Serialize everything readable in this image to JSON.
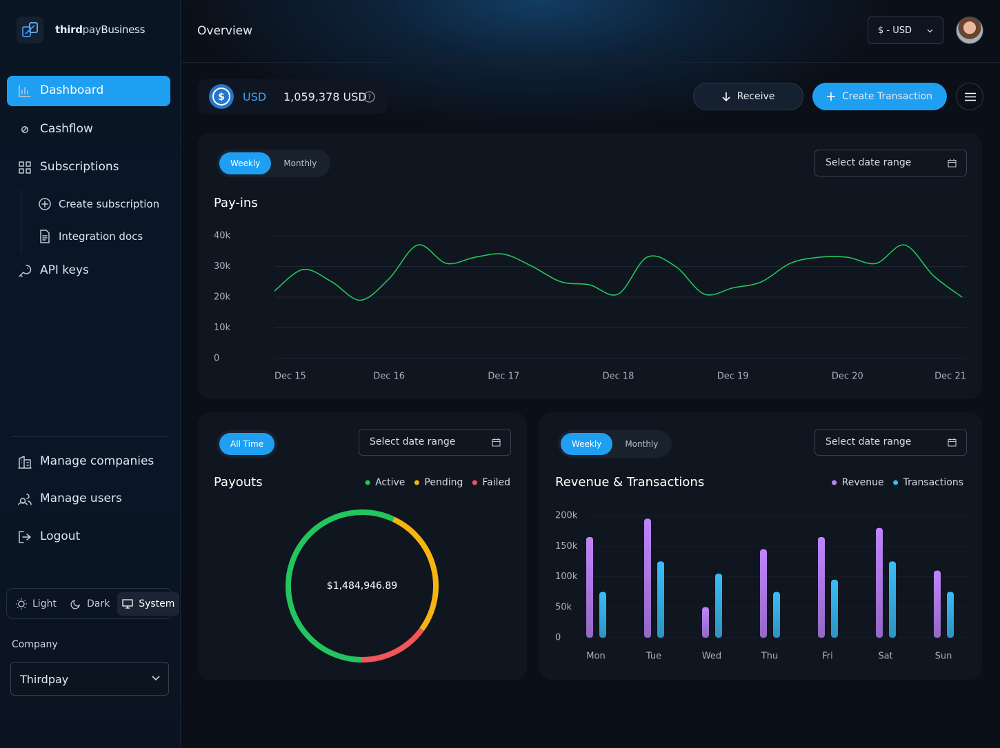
{
  "brand": [
    "third",
    "pay",
    "Business"
  ],
  "nav": [
    {
      "label": "Dashboard",
      "active": true
    },
    {
      "label": "Cashflow"
    },
    {
      "label": "Subscriptions"
    }
  ],
  "subnav": [
    "Create subscription",
    "Integration docs"
  ],
  "api_keys": "API keys",
  "bottom_nav": [
    "Manage companies",
    "Manage users",
    "Logout"
  ],
  "theme": {
    "options": [
      "Light",
      "Dark",
      "System"
    ],
    "selected": "System"
  },
  "company": {
    "label": "Company",
    "value": "Thirdpay"
  },
  "header": {
    "title": "Overview",
    "currency": "$ - USD"
  },
  "balance": {
    "currency": "USD",
    "amount": "1,059,378 USD"
  },
  "actions": {
    "receive": "Receive",
    "create": "Create Transaction"
  },
  "cards": [
    {
      "tabs": [
        "Weekly",
        "Monthly"
      ],
      "active_tab": "Weekly",
      "date_range": "Select date range"
    },
    {
      "tabs": [
        "All Time"
      ],
      "active_tab": "All Time",
      "date_range": "Select date range"
    },
    {
      "tabs": [
        "Weekly",
        "Monthly"
      ],
      "active_tab": "Weekly",
      "date_range": "Select date range"
    }
  ],
  "chart_data": [
    {
      "type": "line",
      "title": "Pay-ins",
      "categories": [
        "Dec 15",
        null,
        null,
        null,
        "Dec 16",
        null,
        null,
        null,
        "Dec 17",
        null,
        null,
        null,
        "Dec 18",
        null,
        null,
        null,
        "Dec 19",
        null,
        null,
        null,
        "Dec 20",
        null,
        null,
        null,
        "Dec 21"
      ],
      "values": [
        22000,
        29000,
        25000,
        19000,
        26000,
        37000,
        31000,
        33000,
        34000,
        30000,
        25000,
        24000,
        21000,
        33000,
        30000,
        21000,
        23000,
        25000,
        31000,
        33000,
        33000,
        31000,
        37000,
        27000,
        20000
      ],
      "color": "#22c55e",
      "ylim": [
        0,
        40000
      ],
      "yticks": [
        0,
        {
          "value": 10000,
          "label": "10k"
        },
        {
          "value": 20000,
          "label": "20k"
        },
        {
          "value": 30000,
          "label": "30k"
        },
        {
          "value": 40000,
          "label": "40k"
        }
      ],
      "grid": true
    },
    {
      "type": "pie",
      "title": "Payouts",
      "categories": [
        "Active",
        "Pending",
        "Failed"
      ],
      "values": [
        57,
        28,
        15
      ],
      "colors": [
        "#22c55e",
        "#f5b50f",
        "#f2555a"
      ],
      "center_label": "$1,484,946.89",
      "legend": "top-right"
    },
    {
      "type": "bar",
      "title": "Revenue & Transactions",
      "categories": [
        "Mon",
        "Tue",
        "Wed",
        "Thu",
        "Fri",
        "Sat",
        "Sun"
      ],
      "series": [
        {
          "name": "Revenue",
          "color": "#c084fc",
          "values": [
            165000,
            195000,
            50000,
            145000,
            165000,
            180000,
            110000
          ]
        },
        {
          "name": "Transactions",
          "color": "#38bdf8",
          "values": [
            75000,
            125000,
            105000,
            75000,
            95000,
            125000,
            75000
          ]
        }
      ],
      "ylim": [
        0,
        200000
      ],
      "yticks": [
        0,
        {
          "value": 50000,
          "label": "50k"
        },
        {
          "value": 100000,
          "label": "100k"
        },
        {
          "value": 150000,
          "label": "150k"
        },
        {
          "value": 200000,
          "label": "200k"
        }
      ],
      "grid": true,
      "legend": "top-right"
    }
  ]
}
